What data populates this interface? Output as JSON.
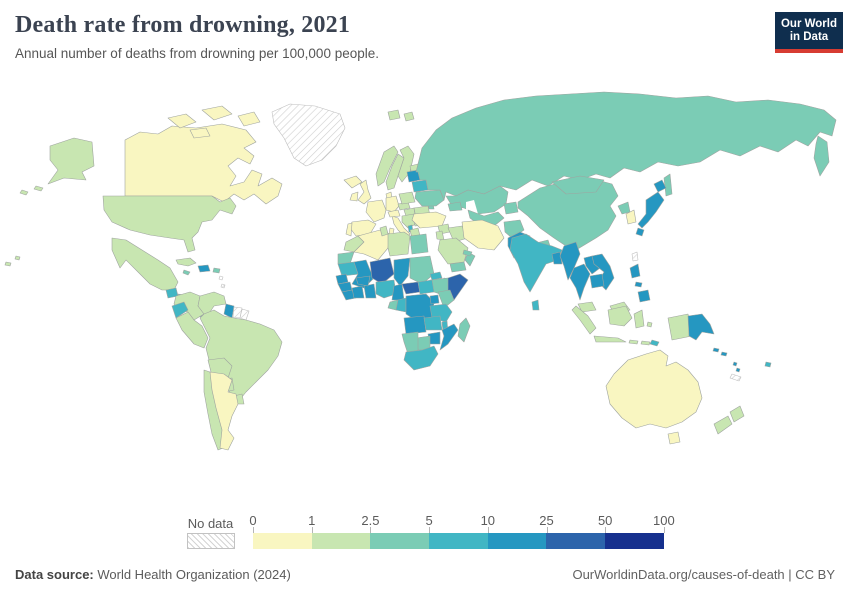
{
  "header": {
    "title": "Death rate from drowning, 2021",
    "subtitle": "Annual number of deaths from drowning per 100,000 people.",
    "logo": {
      "line1": "Our World",
      "line2": "in Data"
    }
  },
  "legend": {
    "no_data_label": "No data",
    "ticks": [
      "0",
      "1",
      "2.5",
      "5",
      "10",
      "25",
      "50",
      "100"
    ]
  },
  "footer": {
    "source_bold": "Data source:",
    "source_rest": " World Health Organization (2024)",
    "credit": "OurWorldinData.org/causes-of-death | CC BY"
  },
  "colors": {
    "scale": [
      "#f9f6c1",
      "#c8e6b1",
      "#7bccb5",
      "#41b6c4",
      "#2597c1",
      "#2c64ab",
      "#16308e"
    ],
    "no_data_hatch_line": "#d4d4d4",
    "map_border": "#9fa4a0",
    "logo_bg": "#0f2e4e",
    "logo_red": "#d73c32"
  },
  "chart_data": {
    "type": "choropleth",
    "title": "Death rate from drowning, 2021",
    "unit": "annual deaths from drowning per 100,000 people",
    "legend_position": "bottom",
    "bin_edges": [
      0,
      1,
      2.5,
      5,
      10,
      25,
      50,
      100
    ],
    "bin_labels": [
      "0-1",
      "1-2.5",
      "2.5-5",
      "5-10",
      "10-25",
      "25-50",
      "50-100"
    ],
    "bin_colors": [
      "#f9f6c1",
      "#c8e6b1",
      "#7bccb5",
      "#41b6c4",
      "#2597c1",
      "#2c64ab",
      "#16308e"
    ],
    "regions": {
      "canada": 0,
      "alaska": 1,
      "usa": 1,
      "mexico": 1,
      "greenland": "nodata",
      "guatemala": 3,
      "honduras_nicaragua": 2,
      "costa_rica_panama": 2,
      "cuba": 1,
      "jamaica": 2,
      "haiti_dominican": 4,
      "puerto_rico": 2,
      "lesser_antilles": "nodata",
      "colombia": 1,
      "venezuela": 1,
      "guyana": 4,
      "suriname": "nodata",
      "french_guiana": "nodata",
      "ecuador": 3,
      "peru": 1,
      "brazil": 1,
      "bolivia": 1,
      "paraguay": 1,
      "uruguay": 1,
      "chile": 1,
      "argentina": 0,
      "iceland": 0,
      "svalbard": 1,
      "uk": 0,
      "ireland": 0,
      "norway": 1,
      "sweden": 1,
      "finland": 1,
      "denmark": 0,
      "germany": 0,
      "france": 0,
      "spain": 0,
      "portugal": 0,
      "italy": 0,
      "alpine_states": 0,
      "czech_slovakia": 1,
      "poland": 1,
      "hungary": 1,
      "balkans": 1,
      "albania": 3,
      "greece": 1,
      "bulgaria": 1,
      "romania": 1,
      "moldova": 2,
      "ukraine": 2,
      "belarus": 3,
      "baltics": 4,
      "estonia": 1,
      "russia": 2,
      "kamchatka": 2,
      "sakhalin": 2,
      "kazakhstan": 2,
      "central_asia": 2,
      "kyrgyz_tajik": 2,
      "caucasus": 2,
      "turkey": 0,
      "syria": 1,
      "jordan_israel": 1,
      "iraq": 1,
      "iran": 0,
      "afghanistan": 2,
      "pakistan": 4,
      "saudi_arabia": 1,
      "yemen": 2,
      "oman": 2,
      "uae": 2,
      "morocco": 1,
      "algeria": 0,
      "tunisia": 1,
      "libya": 1,
      "egypt": 2,
      "western_sahara": 2,
      "mauritania": 3,
      "mali": 4,
      "niger": 5,
      "chad": 4,
      "sudan": 2,
      "eritrea": 3,
      "djibouti": 3,
      "ethiopia": 2,
      "somalia": 5,
      "senegal": 4,
      "guinea": 4,
      "sierra_leone_liberia": 4,
      "ivory_coast": 4,
      "ghana_togo_benin": 4,
      "burkina_faso": 4,
      "nigeria": 3,
      "cameroon": 4,
      "central_african_republic": 5,
      "south_sudan": 3,
      "gabon": 2,
      "congo": 3,
      "dr_congo": 4,
      "uganda": 4,
      "kenya": 2,
      "tanzania": 3,
      "angola": 4,
      "zambia": 3,
      "malawi": 3,
      "mozambique": 4,
      "zimbabwe": 4,
      "botswana": 2,
      "namibia": 2,
      "south_africa": 3,
      "madagascar": 2,
      "china": 2,
      "mongolia": 2,
      "north_korea": 2,
      "south_korea": 0,
      "japan": 4,
      "taiwan": "nodata",
      "nepal": 2,
      "india": 3,
      "bangladesh": 4,
      "sri_lanka": 3,
      "myanmar": 4,
      "thailand": 4,
      "laos": 4,
      "vietnam": 4,
      "cambodia": 4,
      "malaysia": 1,
      "indonesia": 1,
      "timor_leste": 3,
      "philippines": 4,
      "papua_new_guinea": 4,
      "solomon_islands": 4,
      "vanuatu": 4,
      "fiji": 3,
      "new_caledonia": "nodata",
      "australia": 0,
      "tasmania": 0,
      "new_zealand": 1,
      "hawaii": 1
    }
  }
}
